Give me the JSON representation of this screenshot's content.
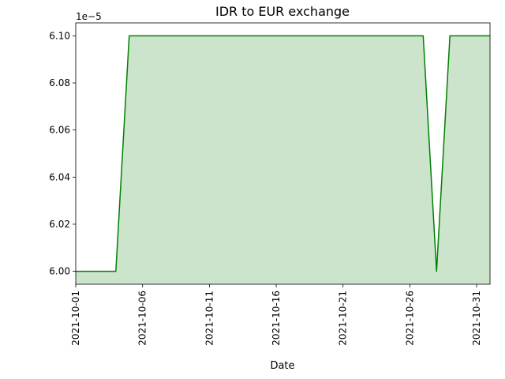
{
  "chart_data": {
    "type": "area",
    "title": "IDR to EUR exchange",
    "xlabel": "Date",
    "ylabel": "",
    "y_offset_label": "1e−5",
    "x": [
      "2021-10-01",
      "2021-10-02",
      "2021-10-03",
      "2021-10-04",
      "2021-10-05",
      "2021-10-06",
      "2021-10-07",
      "2021-10-08",
      "2021-10-09",
      "2021-10-10",
      "2021-10-11",
      "2021-10-12",
      "2021-10-13",
      "2021-10-14",
      "2021-10-15",
      "2021-10-16",
      "2021-10-17",
      "2021-10-18",
      "2021-10-19",
      "2021-10-20",
      "2021-10-21",
      "2021-10-22",
      "2021-10-23",
      "2021-10-24",
      "2021-10-25",
      "2021-10-26",
      "2021-10-27",
      "2021-10-28",
      "2021-10-29",
      "2021-10-30",
      "2021-10-31",
      "2021-11-01"
    ],
    "values": [
      6.0,
      6.0,
      6.0,
      6.0,
      6.1,
      6.1,
      6.1,
      6.1,
      6.1,
      6.1,
      6.1,
      6.1,
      6.1,
      6.1,
      6.1,
      6.1,
      6.1,
      6.1,
      6.1,
      6.1,
      6.1,
      6.1,
      6.1,
      6.1,
      6.1,
      6.1,
      6.1,
      6.0,
      6.1,
      6.1,
      6.1,
      6.1
    ],
    "value_scale": "1e-5",
    "xlim": [
      "2021-10-01",
      "2021-11-01"
    ],
    "ylim": [
      5.9945,
      6.1055
    ],
    "x_ticks": [
      "2021-10-01",
      "2021-10-06",
      "2021-10-11",
      "2021-10-16",
      "2021-10-21",
      "2021-10-26",
      "2021-10-31"
    ],
    "y_ticks": [
      "6.00",
      "6.02",
      "6.04",
      "6.06",
      "6.08",
      "6.10"
    ],
    "line_color": "#008000",
    "fill_color": "#cce4cc",
    "grid": false,
    "legend": "none"
  }
}
